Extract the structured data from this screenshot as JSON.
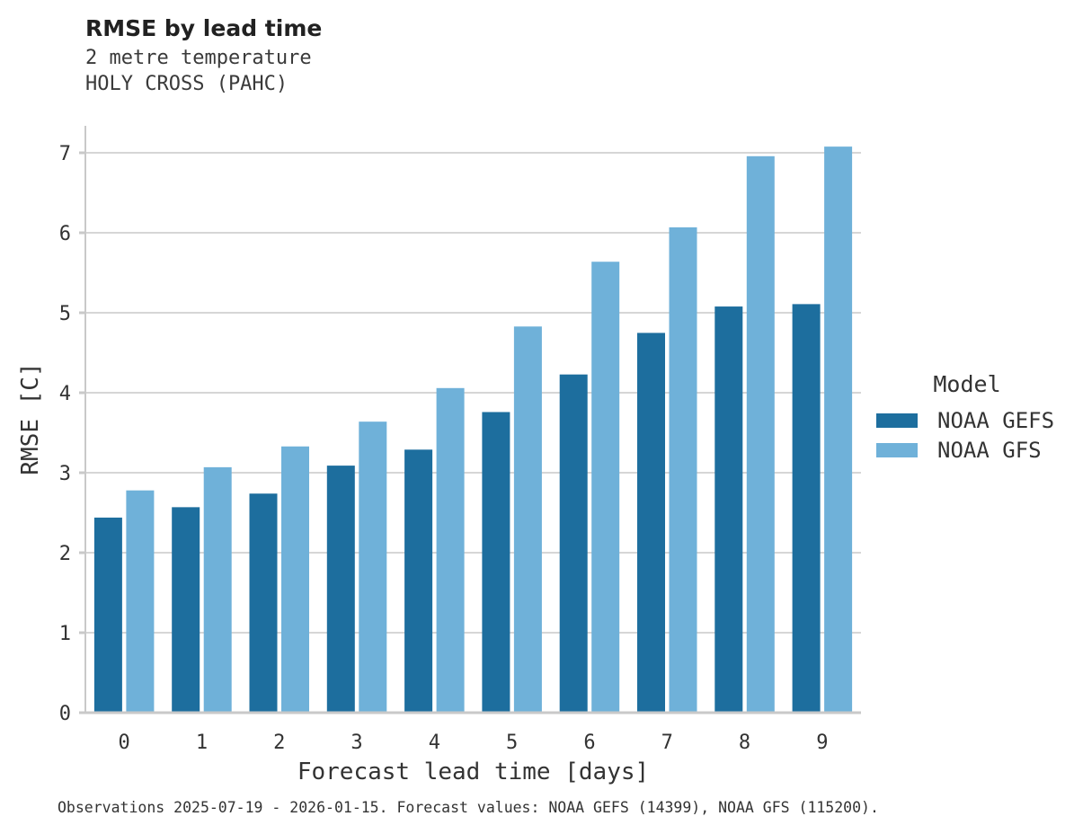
{
  "chart_data": {
    "type": "bar",
    "title": "RMSE by lead time",
    "subtitle": [
      "2 metre temperature",
      "HOLY CROSS (PAHC)"
    ],
    "categories": [
      "0",
      "1",
      "2",
      "3",
      "4",
      "5",
      "6",
      "7",
      "8",
      "9"
    ],
    "series": [
      {
        "name": "NOAA GEFS",
        "color": "#1d6e9e",
        "values": [
          2.44,
          2.57,
          2.74,
          3.09,
          3.29,
          3.76,
          4.23,
          4.75,
          5.08,
          5.11
        ]
      },
      {
        "name": "NOAA GFS",
        "color": "#6fb1d9",
        "values": [
          2.78,
          3.07,
          3.33,
          3.64,
          4.06,
          4.83,
          5.64,
          6.07,
          6.96,
          7.08
        ]
      }
    ],
    "xlabel": "Forecast lead time [days]",
    "ylabel": "RMSE [C]",
    "ylim": [
      0,
      7.34
    ],
    "yticks": [
      0,
      1,
      2,
      3,
      4,
      5,
      6,
      7
    ],
    "grid": true,
    "legend": {
      "title": "Model",
      "position": "right"
    }
  },
  "footer": {
    "caption": "Observations 2025-07-19 - 2026-01-15. Forecast values: NOAA GEFS (14399), NOAA GFS (115200)."
  },
  "colors": {
    "gridline": "#d6d6d6",
    "axis": "#c9c9c9",
    "tick_text": "#333333"
  }
}
